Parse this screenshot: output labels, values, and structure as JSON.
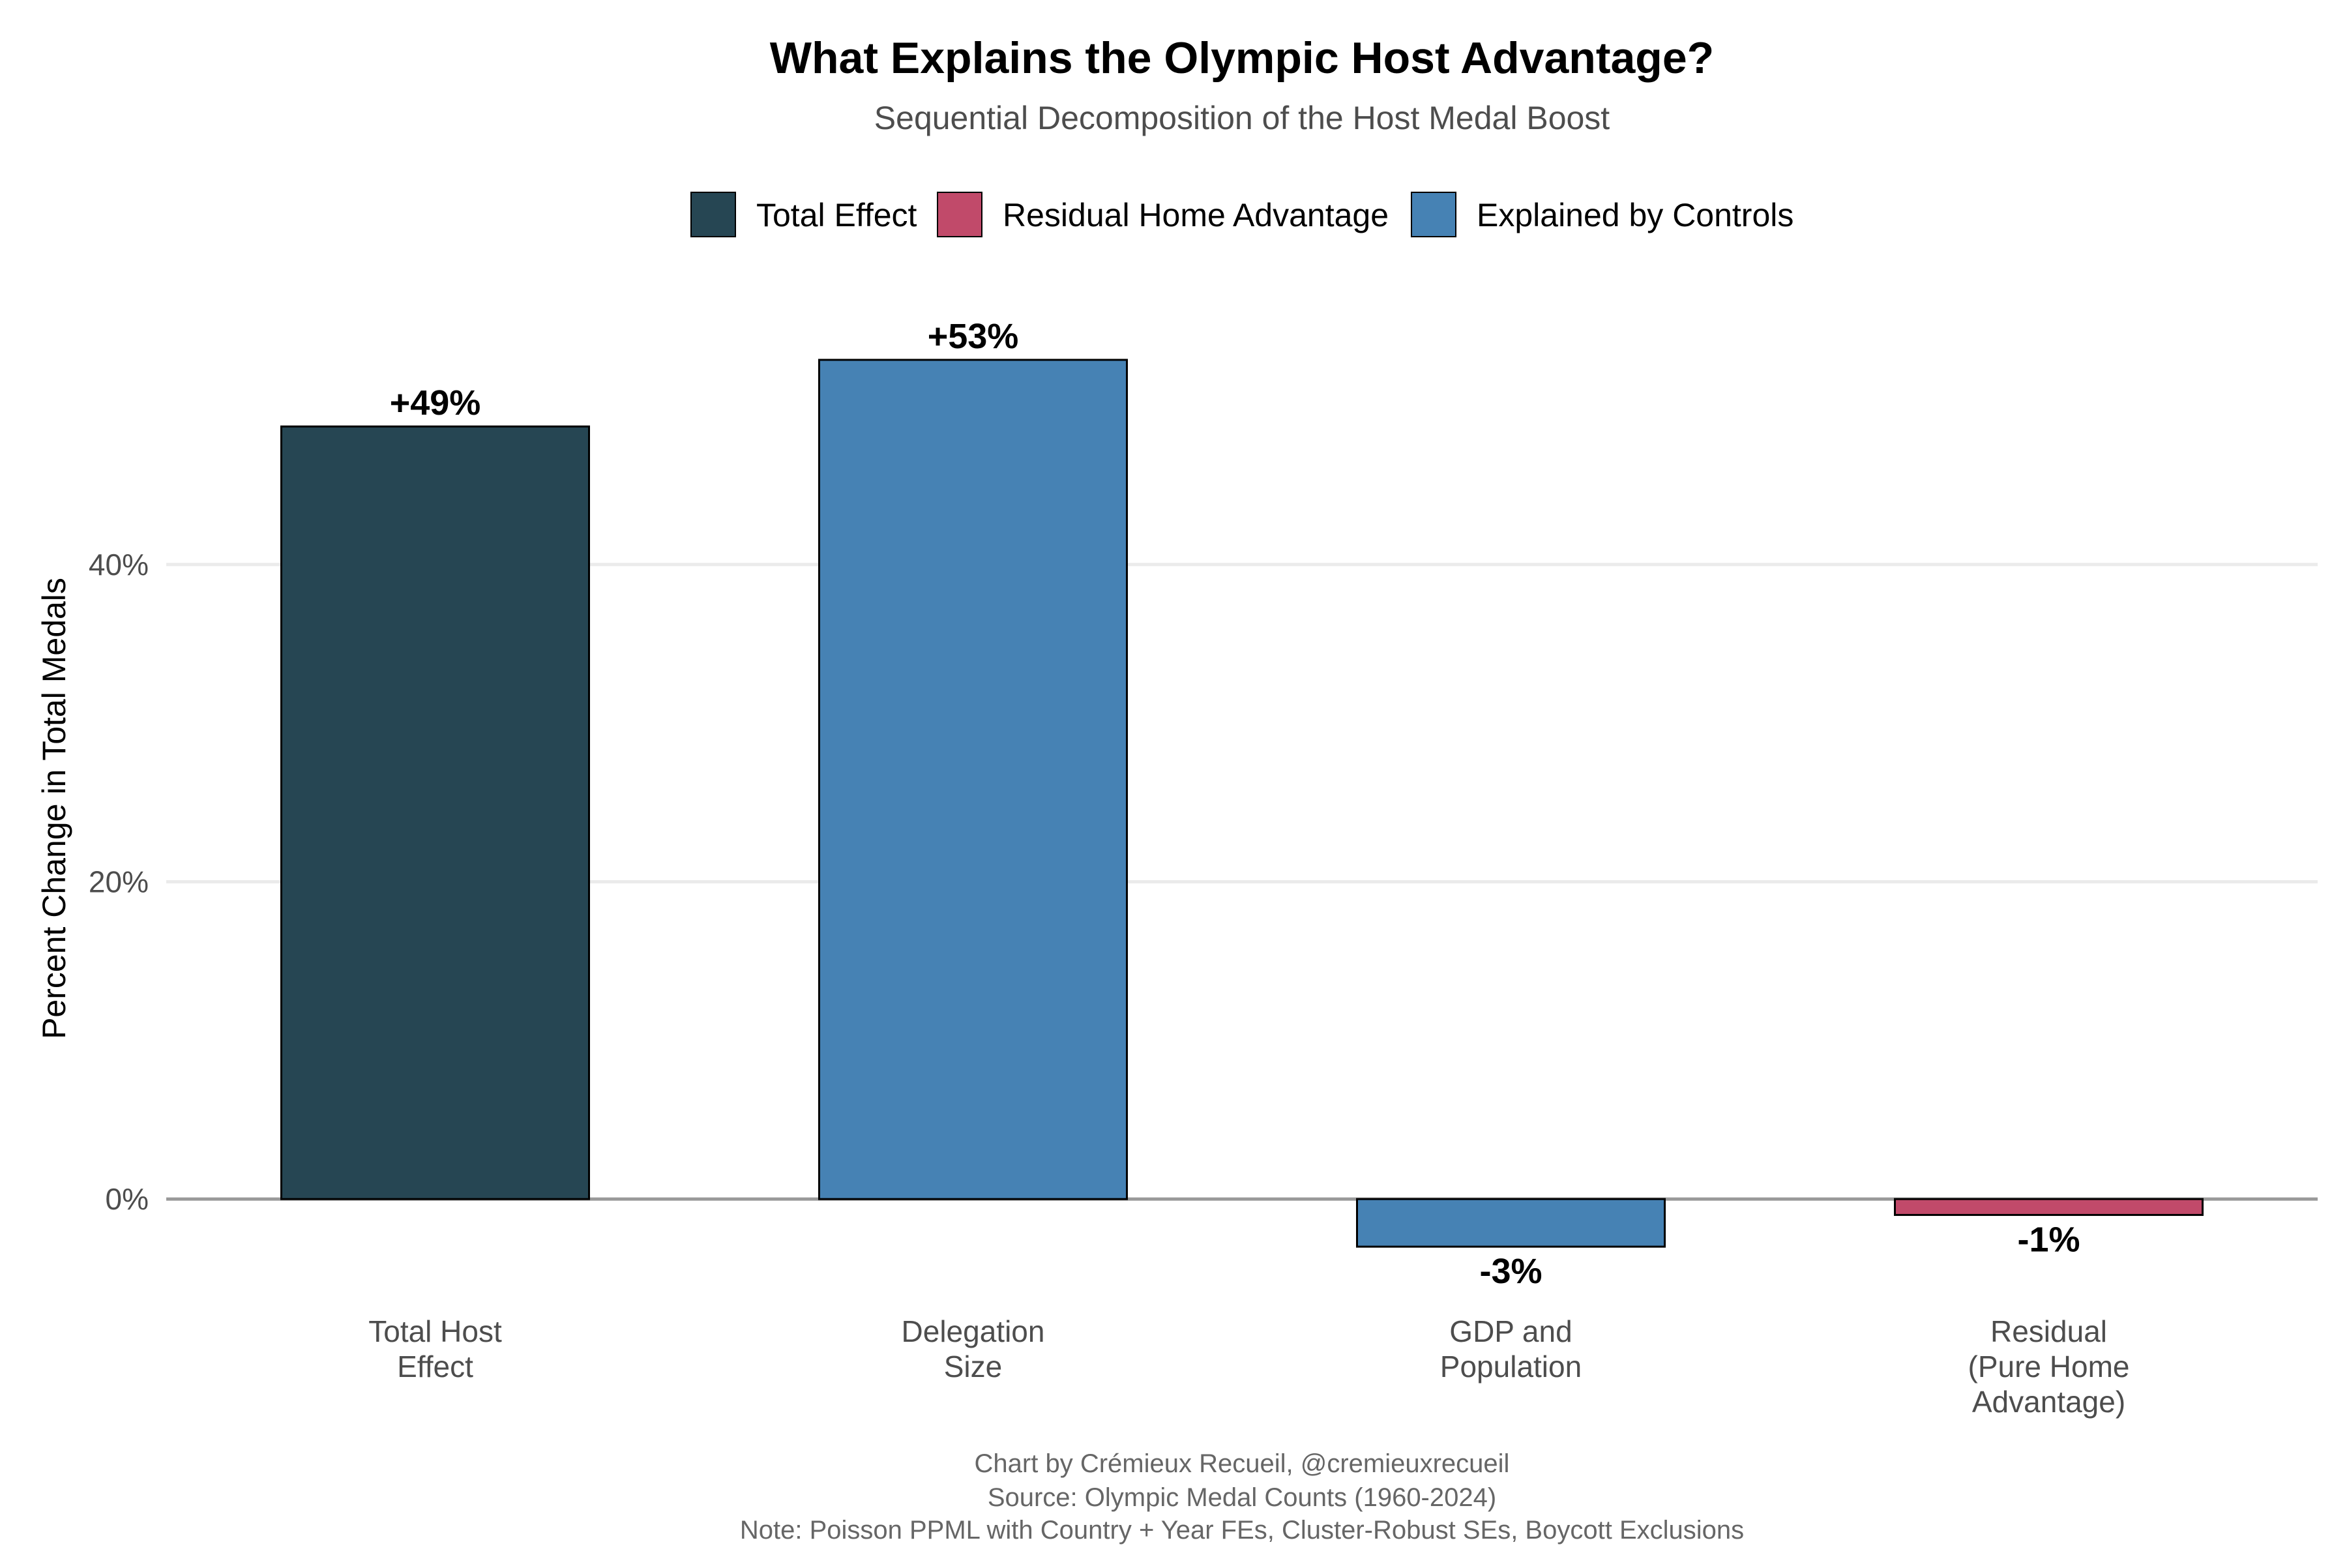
{
  "chart_data": {
    "type": "bar",
    "title": "What Explains the Olympic Host Advantage?",
    "subtitle": "Sequential Decomposition of the Host Medal Boost",
    "ylabel": "Percent Change in Total Medals",
    "xlabel": "",
    "ylim": [
      -6.2,
      57.5
    ],
    "yticks": [
      {
        "value": 0,
        "label": "0%"
      },
      {
        "value": 20,
        "label": "20%"
      },
      {
        "value": 40,
        "label": "40%"
      }
    ],
    "grid": "horizontal",
    "legend_position": "top",
    "legend": [
      {
        "name": "Total Effect",
        "color": "#264653"
      },
      {
        "name": "Residual Home Advantage",
        "color": "#C14A6A"
      },
      {
        "name": "Explained by Controls",
        "color": "#4682B4"
      }
    ],
    "categories": [
      [
        "Total Host",
        "Effect"
      ],
      [
        "Delegation",
        "Size"
      ],
      [
        "GDP and",
        "Population"
      ],
      [
        "Residual",
        "(Pure Home",
        "Advantage)"
      ]
    ],
    "values": [
      48.7,
      52.9,
      -3.0,
      -1.0
    ],
    "groups": [
      "Total Effect",
      "Explained by Controls",
      "Explained by Controls",
      "Residual Home Advantage"
    ],
    "data_labels": [
      "+49%",
      "+53%",
      "-3%",
      "-1%"
    ]
  },
  "caption": {
    "line1": "Chart by Crémieux Recueil, @cremieuxrecueil",
    "line2": "Source: Olympic Medal Counts (1960-2024)",
    "line3": "Note: Poisson PPML with Country + Year FEs, Cluster-Robust SEs, Boycott Exclusions"
  }
}
